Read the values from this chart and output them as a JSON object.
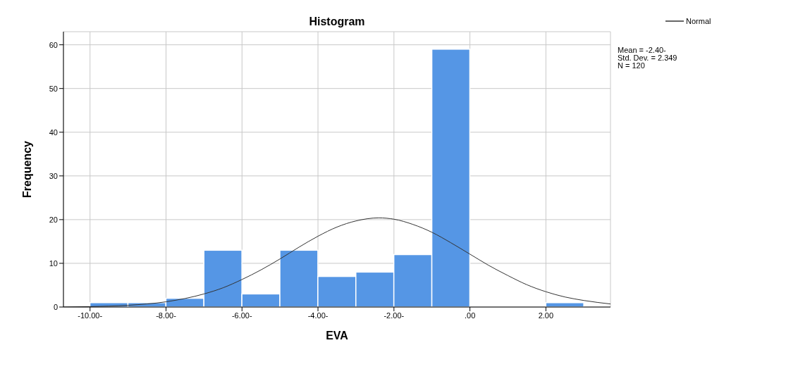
{
  "chart_data": {
    "type": "histogram",
    "title": "Histogram",
    "xlabel": "EVA",
    "ylabel": "Frequency",
    "bins": [
      -10,
      -9,
      -8,
      -7,
      -6,
      -5,
      -4,
      -3,
      -2,
      -1,
      0,
      1,
      2,
      3
    ],
    "values": [
      1,
      1,
      2,
      13,
      3,
      13,
      7,
      8,
      12,
      59,
      0,
      0,
      1
    ],
    "color": "#5596e5",
    "series": [
      {
        "type": "line",
        "name": "Normal",
        "color": "#333333",
        "x": [
          -10.7,
          -10,
          -9,
          -8,
          -7,
          -6.5,
          -6,
          -5.5,
          -5,
          -4.5,
          -4,
          -3.5,
          -3,
          -2.4,
          -2,
          -1.5,
          -1,
          -0.5,
          0,
          0.5,
          1,
          1.5,
          2,
          2.5,
          3,
          3.7
        ],
        "values": [
          0,
          0.1,
          0.4,
          1.2,
          3,
          4.4,
          6.3,
          8.5,
          11,
          13.7,
          16.2,
          18.3,
          19.7,
          20.4,
          20.1,
          18.9,
          17.1,
          14.7,
          12.1,
          9.5,
          7.2,
          5.1,
          3.5,
          2.3,
          1.5,
          0.7
        ]
      }
    ],
    "annotations": [
      "Mean = -2.40-",
      "Std. Dev. = 2.349",
      "N = 120"
    ],
    "xlim": [
      -10.7,
      3.7
    ],
    "ylim": [
      0,
      63
    ],
    "xticks": [
      {
        "value": -10,
        "label": "-10.00-"
      },
      {
        "value": -8,
        "label": "-8.00-"
      },
      {
        "value": -6,
        "label": "-6.00-"
      },
      {
        "value": -4,
        "label": "-4.00-"
      },
      {
        "value": -2,
        "label": "-2.00-"
      },
      {
        "value": 0,
        "label": ".00"
      },
      {
        "value": 2,
        "label": "2.00"
      }
    ],
    "yticks": [
      0,
      10,
      20,
      30,
      40,
      50,
      60
    ],
    "grid": true,
    "legend": "top right",
    "marker": "none",
    "line_style": "solid"
  }
}
